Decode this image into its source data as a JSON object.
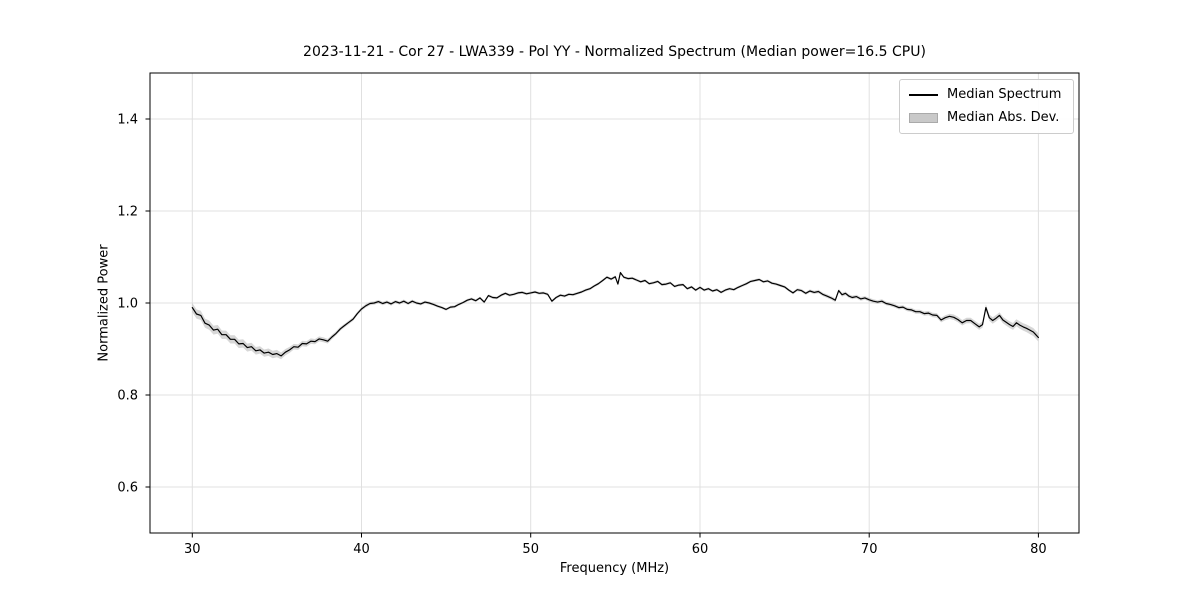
{
  "chart_data": {
    "type": "line",
    "title": "2023-11-21 - Cor 27 - LWA339 - Pol YY - Normalized Spectrum (Median power=16.5 CPU)",
    "xlabel": "Frequency (MHz)",
    "ylabel": "Normalized Power",
    "xlim": [
      27.5,
      82.4
    ],
    "ylim": [
      0.5,
      1.5
    ],
    "xticks": [
      30,
      40,
      50,
      60,
      70,
      80
    ],
    "yticks": [
      "0.6",
      "0.8",
      "1.0",
      "1.2",
      "1.4"
    ],
    "grid": true,
    "grid_color": "#e0e0e0",
    "legend": {
      "position": "upper right",
      "entries": [
        {
          "label": "Median Spectrum",
          "type": "line",
          "color": "#000000"
        },
        {
          "label": "Median Abs. Dev.",
          "type": "patch",
          "color": "#c9c9c9"
        }
      ]
    },
    "series": [
      {
        "name": "Median Spectrum",
        "color": "#000000",
        "points": [
          [
            30.0,
            0.99
          ],
          [
            30.25,
            0.976
          ],
          [
            30.5,
            0.973
          ],
          [
            30.75,
            0.956
          ],
          [
            31.0,
            0.952
          ],
          [
            31.25,
            0.941
          ],
          [
            31.5,
            0.943
          ],
          [
            31.75,
            0.931
          ],
          [
            32.0,
            0.931
          ],
          [
            32.25,
            0.921
          ],
          [
            32.5,
            0.921
          ],
          [
            32.75,
            0.911
          ],
          [
            33.0,
            0.912
          ],
          [
            33.25,
            0.903
          ],
          [
            33.5,
            0.905
          ],
          [
            33.75,
            0.896
          ],
          [
            34.0,
            0.898
          ],
          [
            34.25,
            0.891
          ],
          [
            34.5,
            0.893
          ],
          [
            34.75,
            0.888
          ],
          [
            35.0,
            0.89
          ],
          [
            35.25,
            0.885
          ],
          [
            35.5,
            0.893
          ],
          [
            35.75,
            0.898
          ],
          [
            36.0,
            0.905
          ],
          [
            36.25,
            0.904
          ],
          [
            36.5,
            0.912
          ],
          [
            36.75,
            0.911
          ],
          [
            37.0,
            0.917
          ],
          [
            37.25,
            0.916
          ],
          [
            37.5,
            0.922
          ],
          [
            37.75,
            0.92
          ],
          [
            38.0,
            0.917
          ],
          [
            38.25,
            0.926
          ],
          [
            38.5,
            0.934
          ],
          [
            38.75,
            0.944
          ],
          [
            39.0,
            0.951
          ],
          [
            39.25,
            0.958
          ],
          [
            39.5,
            0.965
          ],
          [
            39.75,
            0.977
          ],
          [
            40.0,
            0.987
          ],
          [
            40.25,
            0.994
          ],
          [
            40.5,
            0.999
          ],
          [
            40.75,
            1.0
          ],
          [
            41.0,
            1.003
          ],
          [
            41.25,
            0.999
          ],
          [
            41.5,
            1.002
          ],
          [
            41.75,
            0.998
          ],
          [
            42.0,
            1.003
          ],
          [
            42.25,
            1.0
          ],
          [
            42.5,
            1.004
          ],
          [
            42.75,
            0.999
          ],
          [
            43.0,
            1.004
          ],
          [
            43.25,
            1.0
          ],
          [
            43.5,
            0.998
          ],
          [
            43.75,
            1.002
          ],
          [
            44.0,
            1.0
          ],
          [
            44.25,
            0.997
          ],
          [
            44.5,
            0.993
          ],
          [
            44.75,
            0.99
          ],
          [
            45.0,
            0.986
          ],
          [
            45.25,
            0.991
          ],
          [
            45.5,
            0.992
          ],
          [
            45.75,
            0.997
          ],
          [
            46.0,
            1.001
          ],
          [
            46.25,
            1.006
          ],
          [
            46.5,
            1.009
          ],
          [
            46.75,
            1.005
          ],
          [
            47.0,
            1.011
          ],
          [
            47.25,
            1.002
          ],
          [
            47.5,
            1.016
          ],
          [
            47.75,
            1.012
          ],
          [
            48.0,
            1.011
          ],
          [
            48.25,
            1.017
          ],
          [
            48.5,
            1.021
          ],
          [
            48.75,
            1.017
          ],
          [
            49.0,
            1.019
          ],
          [
            49.25,
            1.022
          ],
          [
            49.5,
            1.023
          ],
          [
            49.75,
            1.02
          ],
          [
            50.0,
            1.022
          ],
          [
            50.25,
            1.024
          ],
          [
            50.5,
            1.021
          ],
          [
            50.75,
            1.022
          ],
          [
            51.0,
            1.019
          ],
          [
            51.25,
            1.004
          ],
          [
            51.5,
            1.012
          ],
          [
            51.75,
            1.017
          ],
          [
            52.0,
            1.015
          ],
          [
            52.25,
            1.019
          ],
          [
            52.5,
            1.018
          ],
          [
            52.75,
            1.021
          ],
          [
            53.0,
            1.024
          ],
          [
            53.25,
            1.028
          ],
          [
            53.5,
            1.031
          ],
          [
            53.75,
            1.037
          ],
          [
            54.0,
            1.042
          ],
          [
            54.25,
            1.049
          ],
          [
            54.5,
            1.056
          ],
          [
            54.75,
            1.052
          ],
          [
            55.0,
            1.057
          ],
          [
            55.15,
            1.041
          ],
          [
            55.3,
            1.066
          ],
          [
            55.5,
            1.056
          ],
          [
            55.75,
            1.053
          ],
          [
            56.0,
            1.054
          ],
          [
            56.25,
            1.05
          ],
          [
            56.5,
            1.046
          ],
          [
            56.75,
            1.049
          ],
          [
            57.0,
            1.042
          ],
          [
            57.25,
            1.044
          ],
          [
            57.5,
            1.047
          ],
          [
            57.75,
            1.04
          ],
          [
            58.0,
            1.041
          ],
          [
            58.25,
            1.044
          ],
          [
            58.5,
            1.036
          ],
          [
            58.75,
            1.039
          ],
          [
            59.0,
            1.04
          ],
          [
            59.25,
            1.031
          ],
          [
            59.5,
            1.035
          ],
          [
            59.75,
            1.028
          ],
          [
            60.0,
            1.034
          ],
          [
            60.25,
            1.028
          ],
          [
            60.5,
            1.031
          ],
          [
            60.75,
            1.026
          ],
          [
            61.0,
            1.029
          ],
          [
            61.25,
            1.023
          ],
          [
            61.5,
            1.028
          ],
          [
            61.75,
            1.031
          ],
          [
            62.0,
            1.029
          ],
          [
            62.25,
            1.034
          ],
          [
            62.5,
            1.038
          ],
          [
            62.75,
            1.042
          ],
          [
            63.0,
            1.047
          ],
          [
            63.25,
            1.049
          ],
          [
            63.5,
            1.051
          ],
          [
            63.75,
            1.046
          ],
          [
            64.0,
            1.048
          ],
          [
            64.25,
            1.043
          ],
          [
            64.5,
            1.041
          ],
          [
            64.75,
            1.038
          ],
          [
            65.0,
            1.035
          ],
          [
            65.25,
            1.028
          ],
          [
            65.5,
            1.022
          ],
          [
            65.75,
            1.029
          ],
          [
            66.0,
            1.027
          ],
          [
            66.25,
            1.021
          ],
          [
            66.5,
            1.026
          ],
          [
            66.75,
            1.023
          ],
          [
            67.0,
            1.025
          ],
          [
            67.25,
            1.019
          ],
          [
            67.5,
            1.015
          ],
          [
            67.75,
            1.011
          ],
          [
            68.0,
            1.006
          ],
          [
            68.2,
            1.027
          ],
          [
            68.4,
            1.018
          ],
          [
            68.6,
            1.021
          ],
          [
            68.8,
            1.015
          ],
          [
            69.0,
            1.012
          ],
          [
            69.25,
            1.014
          ],
          [
            69.5,
            1.009
          ],
          [
            69.75,
            1.011
          ],
          [
            70.0,
            1.007
          ],
          [
            70.25,
            1.004
          ],
          [
            70.5,
            1.002
          ],
          [
            70.75,
            1.004
          ],
          [
            71.0,
            0.999
          ],
          [
            71.25,
            0.997
          ],
          [
            71.5,
            0.994
          ],
          [
            71.75,
            0.99
          ],
          [
            72.0,
            0.991
          ],
          [
            72.25,
            0.986
          ],
          [
            72.5,
            0.985
          ],
          [
            72.75,
            0.981
          ],
          [
            73.0,
            0.981
          ],
          [
            73.25,
            0.977
          ],
          [
            73.5,
            0.978
          ],
          [
            73.75,
            0.974
          ],
          [
            74.0,
            0.973
          ],
          [
            74.25,
            0.963
          ],
          [
            74.5,
            0.968
          ],
          [
            74.75,
            0.971
          ],
          [
            75.0,
            0.969
          ],
          [
            75.25,
            0.964
          ],
          [
            75.5,
            0.957
          ],
          [
            75.75,
            0.962
          ],
          [
            76.0,
            0.962
          ],
          [
            76.25,
            0.955
          ],
          [
            76.5,
            0.948
          ],
          [
            76.7,
            0.953
          ],
          [
            76.9,
            0.99
          ],
          [
            77.1,
            0.968
          ],
          [
            77.3,
            0.962
          ],
          [
            77.5,
            0.967
          ],
          [
            77.7,
            0.973
          ],
          [
            77.9,
            0.963
          ],
          [
            78.1,
            0.958
          ],
          [
            78.3,
            0.953
          ],
          [
            78.5,
            0.949
          ],
          [
            78.7,
            0.957
          ],
          [
            78.9,
            0.952
          ],
          [
            79.1,
            0.948
          ],
          [
            79.3,
            0.945
          ],
          [
            79.5,
            0.941
          ],
          [
            79.7,
            0.937
          ],
          [
            79.85,
            0.931
          ],
          [
            80.0,
            0.925
          ]
        ]
      }
    ],
    "band": {
      "name": "Median Abs. Dev.",
      "color": "#bdbdbd",
      "opacity": 0.6,
      "halfwidth_points": [
        [
          30,
          0.01
        ],
        [
          31,
          0.01
        ],
        [
          32,
          0.009
        ],
        [
          33,
          0.009
        ],
        [
          34,
          0.008
        ],
        [
          35,
          0.008
        ],
        [
          36,
          0.006
        ],
        [
          37,
          0.006
        ],
        [
          38,
          0.005
        ],
        [
          39,
          0.004
        ],
        [
          40,
          0.004
        ],
        [
          45,
          0.003
        ],
        [
          50,
          0.003
        ],
        [
          55,
          0.003
        ],
        [
          60,
          0.003
        ],
        [
          65,
          0.003
        ],
        [
          68,
          0.004
        ],
        [
          70,
          0.004
        ],
        [
          72,
          0.004
        ],
        [
          74,
          0.005
        ],
        [
          75,
          0.006
        ],
        [
          76,
          0.006
        ],
        [
          77,
          0.007
        ],
        [
          78,
          0.007
        ],
        [
          79,
          0.008
        ],
        [
          80,
          0.009
        ]
      ]
    }
  }
}
